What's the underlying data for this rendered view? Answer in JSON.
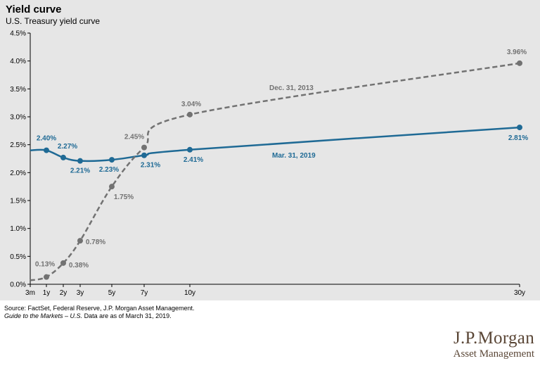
{
  "title": "Yield curve",
  "subtitle": "U.S. Treasury yield curve",
  "footer": {
    "source": "Source: FactSet, Federal Reserve, J.P. Morgan Asset Management.",
    "guide_italic": "Guide to the Markets – U.S.",
    "guide_rest": " Data are as of March 31, 2019."
  },
  "logo": {
    "name": "J.P.Morgan",
    "sub": "Asset Management"
  },
  "colors": {
    "background": "#e6e6e6",
    "mar2019": "#1f6a95",
    "dec2013": "#727272"
  },
  "chart_data": {
    "type": "line",
    "x_ticks": [
      "3m",
      "1y",
      "2y",
      "3y",
      "5y",
      "7y",
      "10y",
      "30y"
    ],
    "x_tick_values": [
      0.25,
      1,
      2,
      3,
      5,
      7,
      10,
      30
    ],
    "y_ticks": [
      "0.0%",
      "0.5%",
      "1.0%",
      "1.5%",
      "2.0%",
      "2.5%",
      "3.0%",
      "3.5%",
      "4.0%",
      "4.5%"
    ],
    "ylim": [
      0,
      4.5
    ],
    "series": [
      {
        "name": "Mar. 31, 2019",
        "style": "solid",
        "x": [
          0.25,
          1,
          2,
          3,
          5,
          7,
          10,
          30
        ],
        "y": [
          2.4,
          2.4,
          2.27,
          2.21,
          2.23,
          2.31,
          2.41,
          2.81
        ],
        "labels": [
          "",
          "2.40%",
          "2.27%",
          "2.21%",
          "2.23%",
          "2.31%",
          "2.41%",
          "2.81%"
        ]
      },
      {
        "name": "Dec. 31, 2013",
        "style": "dashed",
        "x": [
          0.25,
          1,
          2,
          3,
          5,
          7,
          10,
          30
        ],
        "y": [
          0.07,
          0.13,
          0.38,
          0.78,
          1.75,
          2.45,
          3.04,
          3.96
        ],
        "labels": [
          "",
          "0.13%",
          "0.38%",
          "0.78%",
          "1.75%",
          "2.45%",
          "3.04%",
          "3.96%"
        ]
      }
    ]
  }
}
